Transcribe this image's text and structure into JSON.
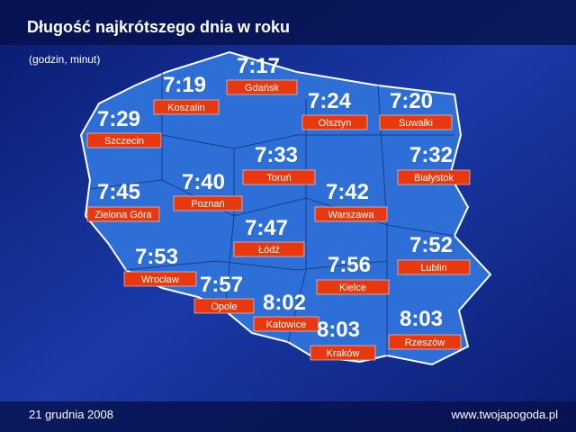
{
  "title": "Długość najkrótszego dnia w roku",
  "subtitle": "(godzin, minut)",
  "cities": [
    {
      "name": "Gdańsk",
      "time": "7:17"
    },
    {
      "name": "Koszalin",
      "time": "7:19"
    },
    {
      "name": "Olsztyn",
      "time": "7:24"
    },
    {
      "name": "Suwałki",
      "time": "7:20"
    },
    {
      "name": "Szczecin",
      "time": "7:29"
    },
    {
      "name": "Toruń",
      "time": "7:33"
    },
    {
      "name": "Białystok",
      "time": "7:32"
    },
    {
      "name": "Zielona Góra",
      "time": "7:45"
    },
    {
      "name": "Poznań",
      "time": "7:40"
    },
    {
      "name": "Warszawa",
      "time": "7:42"
    },
    {
      "name": "Łódź",
      "time": "7:47"
    },
    {
      "name": "Lublin",
      "time": "7:52"
    },
    {
      "name": "Wrocław",
      "time": "7:53"
    },
    {
      "name": "Kielce",
      "time": "7:56"
    },
    {
      "name": "Opole",
      "time": "7:57"
    },
    {
      "name": "Katowice",
      "time": "8:02"
    },
    {
      "name": "Kraków",
      "time": "8:03"
    },
    {
      "name": "Rzeszów",
      "time": "8:03"
    }
  ],
  "footer": {
    "date": "21 grudnia 2008",
    "website": "www.twojapogoda.pl"
  }
}
